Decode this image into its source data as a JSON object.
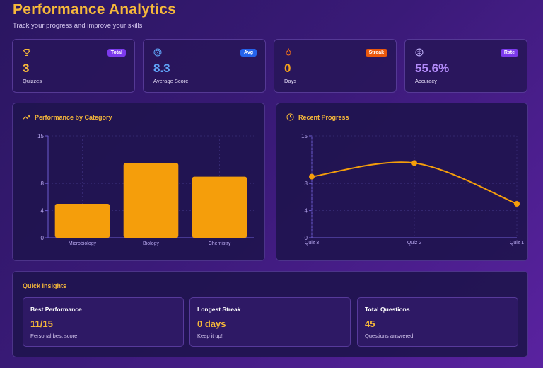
{
  "header": {
    "title": "Performance Analytics",
    "subtitle": "Track your progress and improve your skills"
  },
  "stats": [
    {
      "icon": "trophy-icon",
      "badge": "Total",
      "badge_color": "#7c3aed",
      "value": "3",
      "value_color": "#f6b83a",
      "label": "Quizzes"
    },
    {
      "icon": "target-icon",
      "badge": "Avg",
      "badge_color": "#2563eb",
      "value": "8.3",
      "value_color": "#60a5fa",
      "label": "Average Score"
    },
    {
      "icon": "flame-icon",
      "badge": "Streak",
      "badge_color": "#ea580c",
      "value": "0",
      "value_color": "#f6a21a",
      "label": "Days"
    },
    {
      "icon": "brain-icon",
      "badge": "Rate",
      "badge_color": "#7c3aed",
      "value": "55.6%",
      "value_color": "#b38bfa",
      "label": "Accuracy"
    }
  ],
  "category_panel": {
    "title": "Performance by Category",
    "icon": "trending-up-icon"
  },
  "progress_panel": {
    "title": "Recent Progress",
    "icon": "clock-icon"
  },
  "insights": {
    "title": "Quick Insights",
    "cards": [
      {
        "title": "Best Performance",
        "value": "11/15",
        "sub": "Personal best score"
      },
      {
        "title": "Longest Streak",
        "value": "0 days",
        "sub": "Keep it up!"
      },
      {
        "title": "Total Questions",
        "value": "45",
        "sub": "Questions answered"
      }
    ]
  },
  "colors": {
    "accent": "#f59e0b",
    "grid": "#3b2f7a",
    "axis": "#6d5bd0",
    "tick": "#b8a8f0"
  },
  "chart_data": [
    {
      "type": "bar",
      "categories": [
        "Microbiology",
        "Biology",
        "Chemistry"
      ],
      "values": [
        5,
        11,
        9
      ],
      "yticks": [
        0,
        4,
        8,
        15
      ],
      "ylim": [
        0,
        15
      ],
      "grid": true
    },
    {
      "type": "line",
      "categories": [
        "Quiz 3",
        "Quiz 2",
        "Quiz 1"
      ],
      "values": [
        9,
        11,
        5
      ],
      "yticks": [
        0,
        4,
        8,
        15
      ],
      "ylim": [
        0,
        15
      ],
      "grid": true
    }
  ]
}
